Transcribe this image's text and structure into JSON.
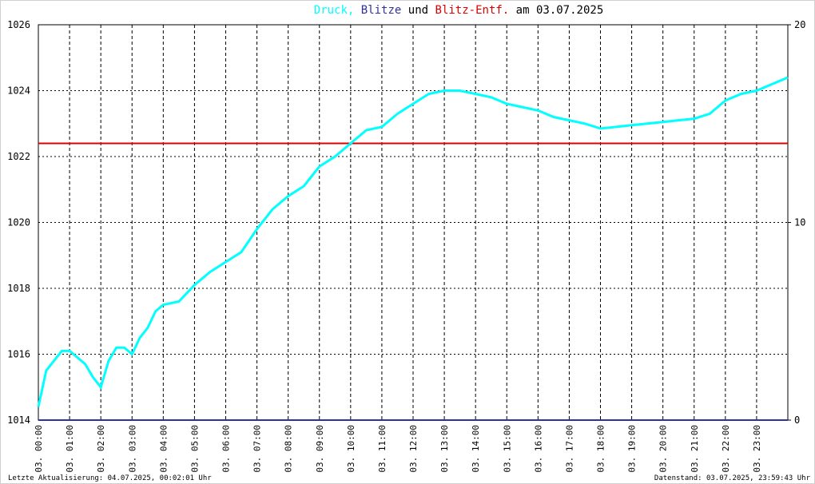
{
  "chart_data": {
    "type": "line",
    "title_joiner": "und",
    "title_suffix": "am 03.07.2025",
    "series": [
      {
        "name": "Druck,",
        "color": "#00ffff",
        "x": [
          0,
          0.25,
          0.5,
          0.75,
          1,
          1.25,
          1.5,
          1.75,
          2,
          2.25,
          2.5,
          2.75,
          3,
          3.25,
          3.5,
          3.75,
          4,
          4.5,
          5,
          5.5,
          6,
          6.5,
          7,
          7.5,
          8,
          8.5,
          9,
          9.5,
          10,
          10.5,
          11,
          11.5,
          12,
          12.5,
          13,
          13.5,
          14,
          14.5,
          15,
          15.5,
          16,
          16.5,
          17,
          17.5,
          18,
          18.5,
          19,
          19.5,
          20,
          20.5,
          21,
          21.5,
          22,
          22.5,
          23,
          23.5,
          24
        ],
        "values": [
          1014.4,
          1015.5,
          1015.8,
          1016.1,
          1016.1,
          1015.9,
          1015.7,
          1015.3,
          1015.0,
          1015.8,
          1016.2,
          1016.2,
          1016.0,
          1016.5,
          1016.8,
          1017.3,
          1017.5,
          1017.6,
          1018.1,
          1018.5,
          1018.8,
          1019.1,
          1019.8,
          1020.4,
          1020.8,
          1021.1,
          1021.7,
          1022.0,
          1022.4,
          1022.8,
          1022.9,
          1023.3,
          1023.6,
          1023.9,
          1024.0,
          1024.0,
          1023.9,
          1023.8,
          1023.6,
          1023.5,
          1023.4,
          1023.2,
          1023.1,
          1023.0,
          1022.85,
          1022.9,
          1022.95,
          1023.0,
          1023.05,
          1023.1,
          1023.15,
          1023.3,
          1023.7,
          1023.9,
          1024.0,
          1024.2,
          1024.4
        ]
      },
      {
        "name": "Blitze",
        "color": "#3030a0",
        "axis": "y2",
        "x": [
          0,
          24
        ],
        "values": [
          0,
          0
        ]
      },
      {
        "name": "Blitz-Entf.",
        "color": "#dd0000",
        "axis": "y2",
        "x": [
          0,
          24
        ],
        "values": [
          14,
          14
        ]
      }
    ],
    "xlim": [
      0,
      24
    ],
    "xticks": [
      {
        "value": 0,
        "label": "03. 00:00"
      },
      {
        "value": 1,
        "label": "03. 01:00"
      },
      {
        "value": 2,
        "label": "03. 02:00"
      },
      {
        "value": 3,
        "label": "03. 03:00"
      },
      {
        "value": 4,
        "label": "03. 04:00"
      },
      {
        "value": 5,
        "label": "03. 05:00"
      },
      {
        "value": 6,
        "label": "03. 06:00"
      },
      {
        "value": 7,
        "label": "03. 07:00"
      },
      {
        "value": 8,
        "label": "03. 08:00"
      },
      {
        "value": 9,
        "label": "03. 09:00"
      },
      {
        "value": 10,
        "label": "03. 10:00"
      },
      {
        "value": 11,
        "label": "03. 11:00"
      },
      {
        "value": 12,
        "label": "03. 12:00"
      },
      {
        "value": 13,
        "label": "03. 13:00"
      },
      {
        "value": 14,
        "label": "03. 14:00"
      },
      {
        "value": 15,
        "label": "03. 15:00"
      },
      {
        "value": 16,
        "label": "03. 16:00"
      },
      {
        "value": 17,
        "label": "03. 17:00"
      },
      {
        "value": 18,
        "label": "03. 18:00"
      },
      {
        "value": 19,
        "label": "03. 19:00"
      },
      {
        "value": 20,
        "label": "03. 20:00"
      },
      {
        "value": 21,
        "label": "03. 21:00"
      },
      {
        "value": 22,
        "label": "03. 22:00"
      },
      {
        "value": 23,
        "label": "03. 23:00"
      }
    ],
    "ylim": [
      1014,
      1026
    ],
    "yticks": [
      1014,
      1016,
      1018,
      1020,
      1022,
      1024,
      1026
    ],
    "y2lim": [
      0,
      20
    ],
    "y2ticks": [
      0,
      10,
      20
    ],
    "grid": true,
    "footer_left": "Letzte Aktualisierung: 04.07.2025, 00:02:01 Uhr",
    "footer_right": "Datenstand: 03.07.2025, 23:59:43 Uhr"
  }
}
